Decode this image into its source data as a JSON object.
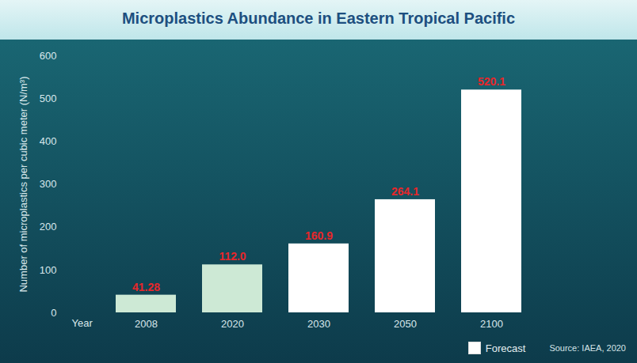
{
  "chart_data": {
    "type": "bar",
    "title": "Microplastics Abundance in Eastern Tropical Pacific",
    "x_label": "Year",
    "y_label": "Number of microplastics per cubic meter (N/m³)",
    "categories": [
      "2008",
      "2020",
      "2030",
      "2050",
      "2100"
    ],
    "values": [
      41.28,
      112.0,
      160.9,
      264.1,
      520.1
    ],
    "value_labels": [
      "41.28",
      "112.0",
      "160.9",
      "264.1",
      "520.1"
    ],
    "colors": [
      "#cde9d5",
      "#cde9d5",
      "#ffffff",
      "#ffffff",
      "#ffffff"
    ],
    "data_labels": true,
    "ylim": [
      0,
      600
    ],
    "yticks": [
      0,
      100,
      200,
      300,
      400,
      500,
      600
    ],
    "grid": false,
    "legend": "bottom right",
    "legend_items": [
      {
        "label": "Forecast",
        "color": "#ffffff"
      }
    ],
    "source": "Source: IAEA, 2020"
  }
}
